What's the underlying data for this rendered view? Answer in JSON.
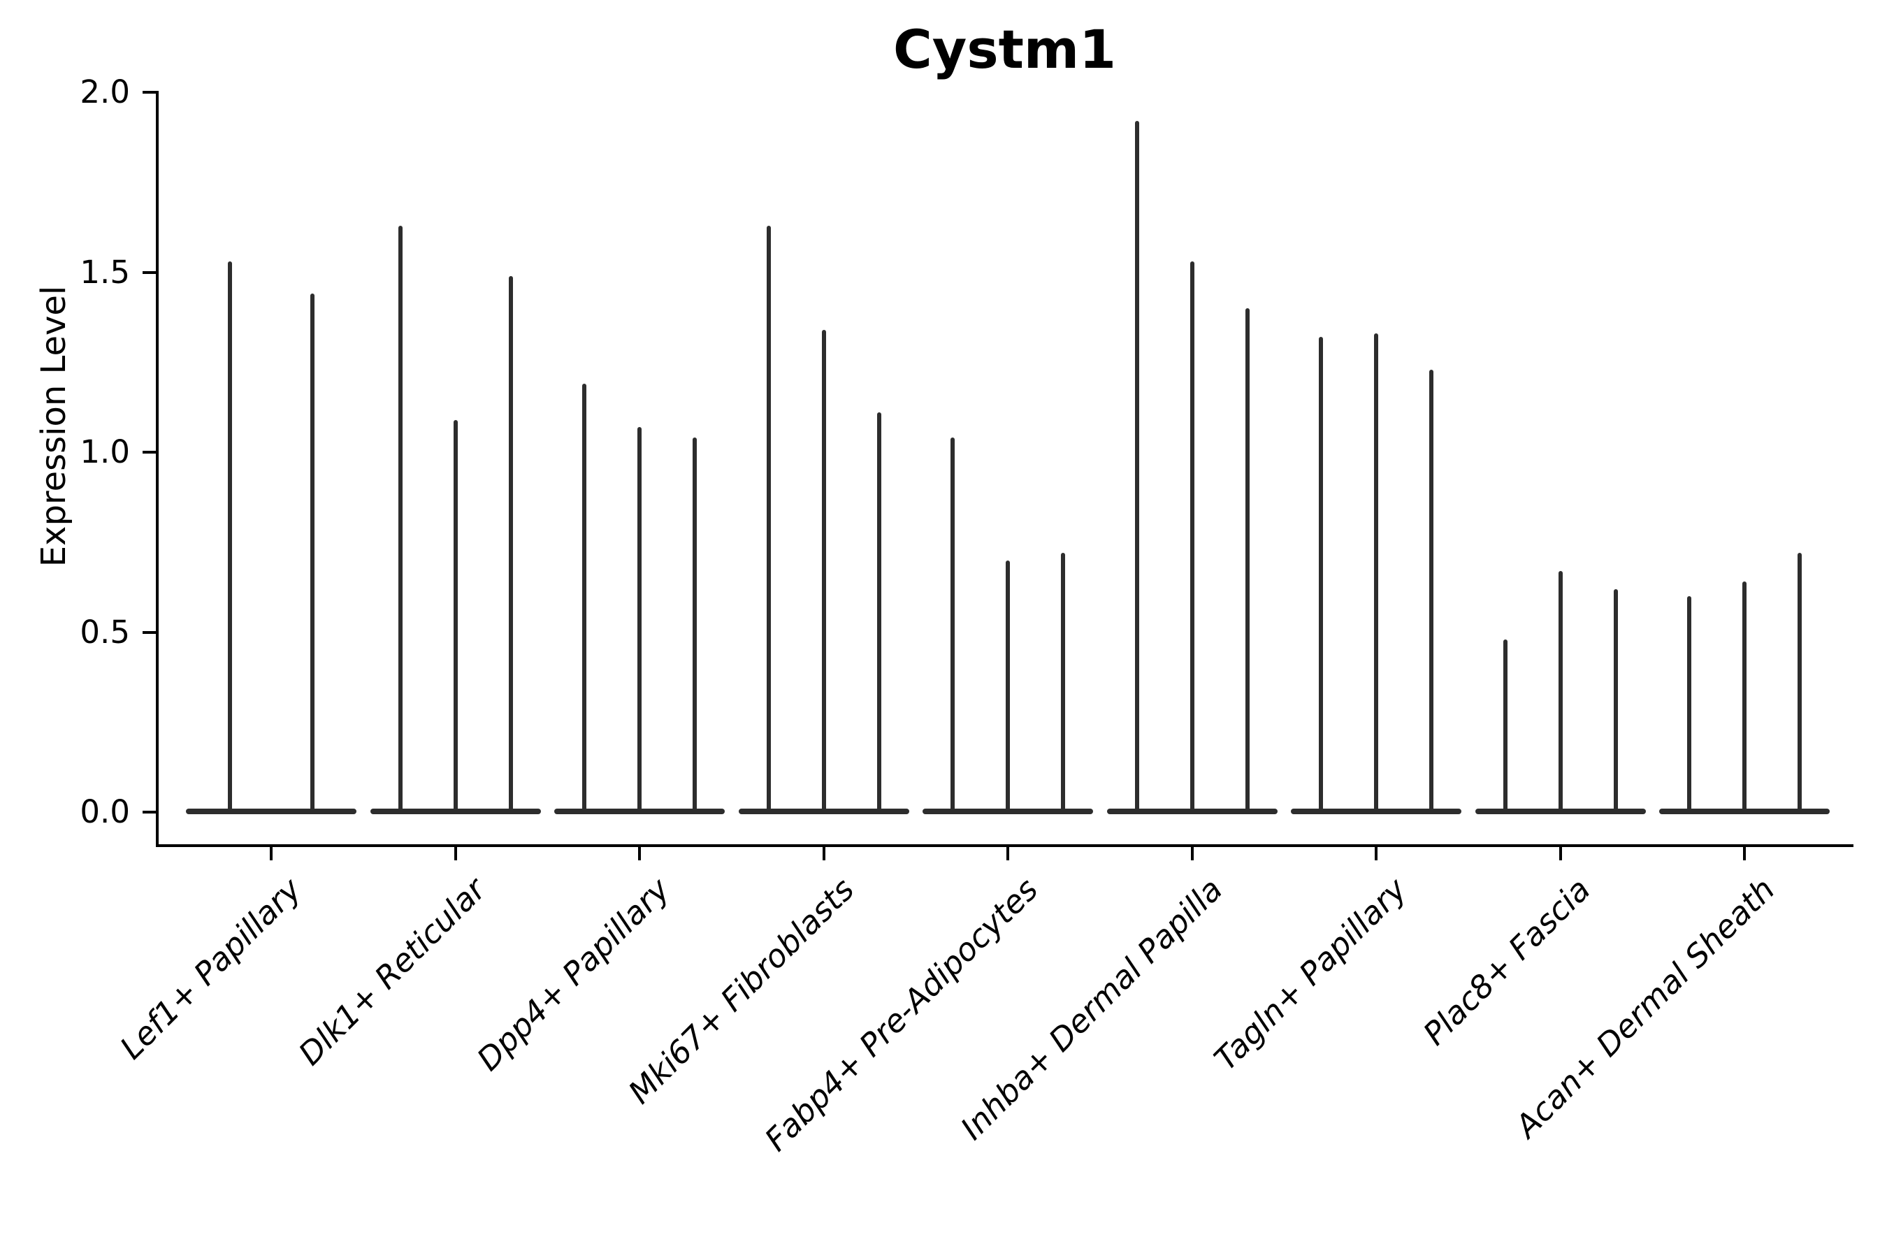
{
  "figure": {
    "title": "Cystm1",
    "ylabel": "Expression Level"
  },
  "chart_data": {
    "type": "violin",
    "title": "Cystm1",
    "xlabel": "",
    "ylabel": "Expression Level",
    "ylim": [
      0.0,
      2.0
    ],
    "yticks": [
      0.0,
      0.5,
      1.0,
      1.5,
      2.0
    ],
    "ytick_labels": [
      "0.0",
      "0.5",
      "1.0",
      "1.5",
      "2.0"
    ],
    "grid": false,
    "legend": "none",
    "categories": [
      "Lef1+ Papillary",
      "Dlk1+ Reticular",
      "Dpp4+ Papillary",
      "Mki67+ Fibroblasts",
      "Fabp4+ Pre-Adipocytes",
      "Inhba+ Dermal Papilla",
      "Tagln+ Papillary",
      "Plac8+ Fascia",
      "Acan+ Dermal Sheath"
    ],
    "description": "Very thin violins (spikes) rising from a flat base at 0; per category 2-3 violins; value listed is the max expression level reached by each violin tip",
    "series": [
      {
        "category": "Lef1+ Papillary",
        "violin_max": [
          1.53,
          1.44
        ]
      },
      {
        "category": "Dlk1+ Reticular",
        "violin_max": [
          1.63,
          1.09,
          1.49
        ]
      },
      {
        "category": "Dpp4+ Papillary",
        "violin_max": [
          1.19,
          1.07,
          1.04
        ]
      },
      {
        "category": "Mki67+ Fibroblasts",
        "violin_max": [
          1.63,
          1.34,
          1.11
        ]
      },
      {
        "category": "Fabp4+ Pre-Adipocytes",
        "violin_max": [
          1.04,
          0.7,
          0.72
        ]
      },
      {
        "category": "Inhba+ Dermal Papilla",
        "violin_max": [
          1.92,
          1.53,
          1.4
        ]
      },
      {
        "category": "Tagln+ Papillary",
        "violin_max": [
          1.32,
          1.33,
          1.23
        ]
      },
      {
        "category": "Plac8+ Fascia",
        "violin_max": [
          0.48,
          0.67,
          0.62
        ]
      },
      {
        "category": "Acan+ Dermal Sheath",
        "violin_max": [
          0.6,
          0.64,
          0.72
        ]
      }
    ],
    "baseline_value": 0.0,
    "violin_color": "#2d2d2d",
    "axis_color": "#000000"
  }
}
